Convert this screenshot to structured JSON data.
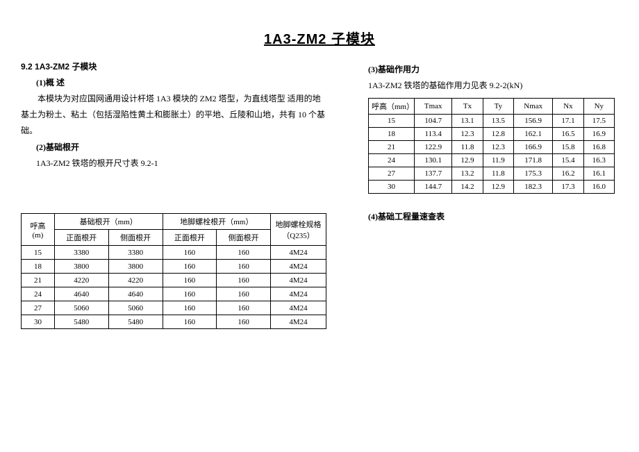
{
  "title": "1A3-ZM2 子模块",
  "left": {
    "section_num": "9.2 1A3-ZM2 子模块",
    "h1": "(1)概  述",
    "p1": "本模块为对应国网通用设计杆塔 1A3 模块的 ZM2 塔型，为直线塔型 适用的地基土为粉土、粘土（包括湿陷性黄土和膨胀土）的平地、丘陵和山地，共有 10 个基础。",
    "h2": "(2)基础根开",
    "p2": "1A3-ZM2 铁塔的根开尺寸表 9.2-1",
    "table1": {
      "header_row1": [
        "呼高",
        "基础根开（mm）",
        "地脚螺栓根开（mm）",
        "地脚螺栓规格"
      ],
      "header_row2": [
        "(m)",
        "正面根开",
        "侧面根开",
        "正面根开",
        "侧面根开",
        "（Q235）"
      ],
      "rows": [
        [
          "15",
          "3380",
          "3380",
          "160",
          "160",
          "4M24"
        ],
        [
          "18",
          "3800",
          "3800",
          "160",
          "160",
          "4M24"
        ],
        [
          "21",
          "4220",
          "4220",
          "160",
          "160",
          "4M24"
        ],
        [
          "24",
          "4640",
          "4640",
          "160",
          "160",
          "4M24"
        ],
        [
          "27",
          "5060",
          "5060",
          "160",
          "160",
          "4M24"
        ],
        [
          "30",
          "5480",
          "5480",
          "160",
          "160",
          "4M24"
        ]
      ]
    }
  },
  "right": {
    "h3": "(3)基础作用力",
    "p3": "1A3-ZM2 铁塔的基础作用力见表 9.2-2(kN)",
    "table2": {
      "header": [
        "呼高（mm）",
        "Tmax",
        "Tx",
        "Ty",
        "Nmax",
        "Nx",
        "Ny"
      ],
      "rows": [
        [
          "15",
          "104.7",
          "13.1",
          "13.5",
          "156.9",
          "17.1",
          "17.5"
        ],
        [
          "18",
          "113.4",
          "12.3",
          "12.8",
          "162.1",
          "16.5",
          "16.9"
        ],
        [
          "21",
          "122.9",
          "11.8",
          "12.3",
          "166.9",
          "15.8",
          "16.8"
        ],
        [
          "24",
          "130.1",
          "12.9",
          "11.9",
          "171.8",
          "15.4",
          "16.3"
        ],
        [
          "27",
          "137.7",
          "13.2",
          "11.8",
          "175.3",
          "16.2",
          "16.1"
        ],
        [
          "30",
          "144.7",
          "14.2",
          "12.9",
          "182.3",
          "17.3",
          "16.0"
        ]
      ]
    },
    "h4": "(4)基础工程量速查表"
  }
}
